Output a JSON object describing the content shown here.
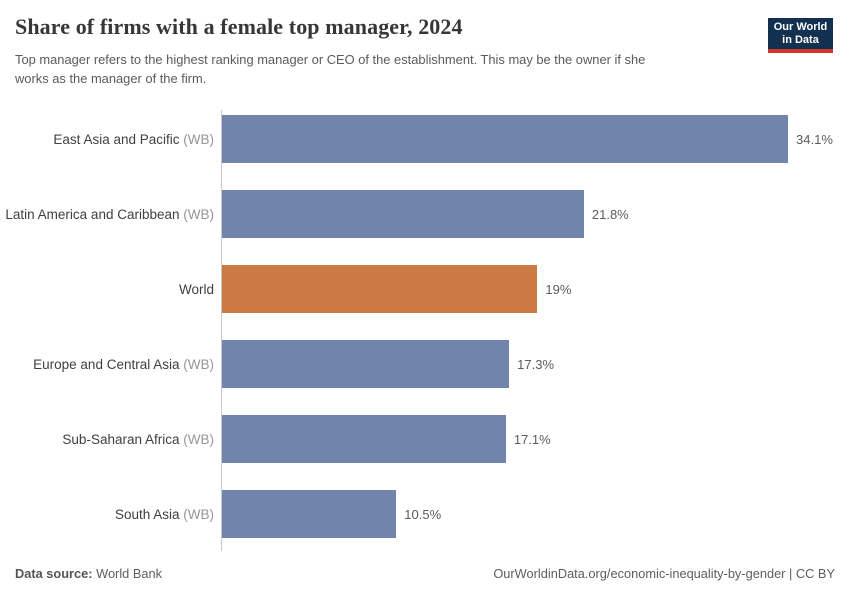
{
  "header": {
    "title": "Share of firms with a female top manager, 2024",
    "subtitle": "Top manager refers to the highest ranking manager or CEO of the establishment. This may be the owner if she works as the manager of the firm.",
    "logo": {
      "line1": "Our World",
      "line2": "in Data"
    }
  },
  "chart_data": {
    "type": "bar",
    "orientation": "horizontal",
    "title": "Share of firms with a female top manager, 2024",
    "xlabel": "",
    "ylabel": "",
    "xlim": [
      0,
      35
    ],
    "grid": false,
    "legend": false,
    "categories": [
      "East Asia and Pacific (WB)",
      "Latin America and Caribbean (WB)",
      "World",
      "Europe and Central Asia (WB)",
      "Sub-Saharan Africa (WB)",
      "South Asia (WB)"
    ],
    "values": [
      34.1,
      21.8,
      19,
      17.3,
      17.1,
      10.5
    ],
    "rows": [
      {
        "label": "East Asia and Pacific",
        "suffix": " (WB)",
        "value": 34.1,
        "display": "34.1%",
        "highlight": false
      },
      {
        "label": "Latin America and Caribbean",
        "suffix": " (WB)",
        "value": 21.8,
        "display": "21.8%",
        "highlight": false
      },
      {
        "label": "World",
        "suffix": "",
        "value": 19,
        "display": "19%",
        "highlight": true
      },
      {
        "label": "Europe and Central Asia",
        "suffix": " (WB)",
        "value": 17.3,
        "display": "17.3%",
        "highlight": false
      },
      {
        "label": "Sub-Saharan Africa",
        "suffix": " (WB)",
        "value": 17.1,
        "display": "17.1%",
        "highlight": false
      },
      {
        "label": "South Asia",
        "suffix": " (WB)",
        "value": 10.5,
        "display": "10.5%",
        "highlight": false
      }
    ],
    "colors": {
      "bar": "#7185ac",
      "highlight": "#cb7a44",
      "axis": "#c9c9c9"
    }
  },
  "footer": {
    "datasource_label": "Data source:",
    "datasource_value": "World Bank",
    "url": "OurWorldinData.org/economic-inequality-by-gender",
    "separator": " | ",
    "license": "CC BY"
  }
}
